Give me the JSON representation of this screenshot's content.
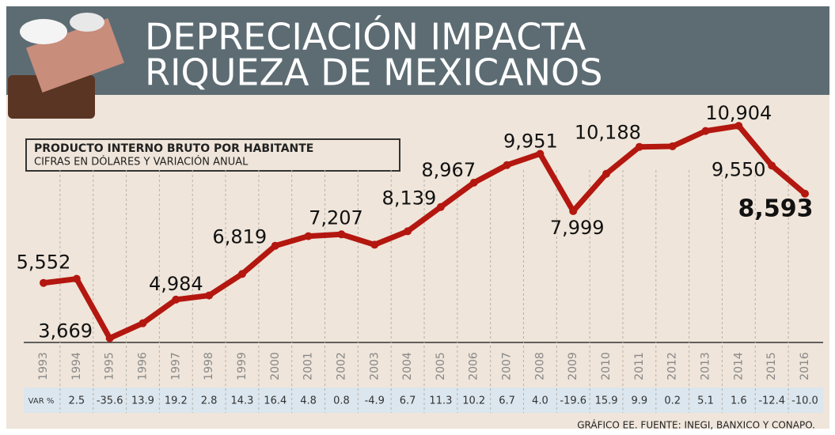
{
  "chart_data": {
    "type": "line",
    "title": "DEPRECIACIÓN IMPACTA\nRIQUEZA DE MEXICANOS",
    "legend_title": "PRODUCTO INTERNO BRUTO POR HABITANTE",
    "legend_subtitle": "CIFRAS EN DÓLARES Y VARIACIÓN ANUAL",
    "categories": [
      "1993",
      "1994",
      "1995",
      "1996",
      "1997",
      "1998",
      "1999",
      "2000",
      "2001",
      "2002",
      "2003",
      "2004",
      "2005",
      "2006",
      "2007",
      "2008",
      "2009",
      "2010",
      "2011",
      "2012",
      "2013",
      "2014",
      "2015",
      "2016"
    ],
    "values": [
      5552,
      5691,
      3669,
      4179,
      4984,
      5124,
      5857,
      6819,
      7146,
      7207,
      6854,
      7313,
      8139,
      8967,
      9568,
      9951,
      7999,
      9271,
      10188,
      10208,
      10729,
      10904,
      9550,
      8593
    ],
    "value_labels": [
      "5,552",
      null,
      "3,669",
      null,
      "4,984",
      null,
      null,
      "6,819",
      null,
      "7,207",
      null,
      null,
      "8,139",
      "8,967",
      null,
      "9,951",
      "7,999",
      null,
      "10,188",
      null,
      null,
      "10,904",
      "9,550",
      "8,593"
    ],
    "color": "#b3170f",
    "ylim": [
      3550,
      11150
    ],
    "variation_label": "VAR %",
    "variation": [
      null,
      "2.5",
      "-35.6",
      "13.9",
      "19.2",
      "2.8",
      "14.3",
      "16.4",
      "4.8",
      "0.8",
      "-4.9",
      "6.7",
      "11.3",
      "10.2",
      "6.7",
      "4.0",
      "-19.6",
      "15.9",
      "9.9",
      "0.2",
      "5.1",
      "1.6",
      "-12.4",
      "-10.0"
    ],
    "source": "GRÁFICO EE. FUENTE: INEGI, BANXICO Y CONAPO."
  }
}
